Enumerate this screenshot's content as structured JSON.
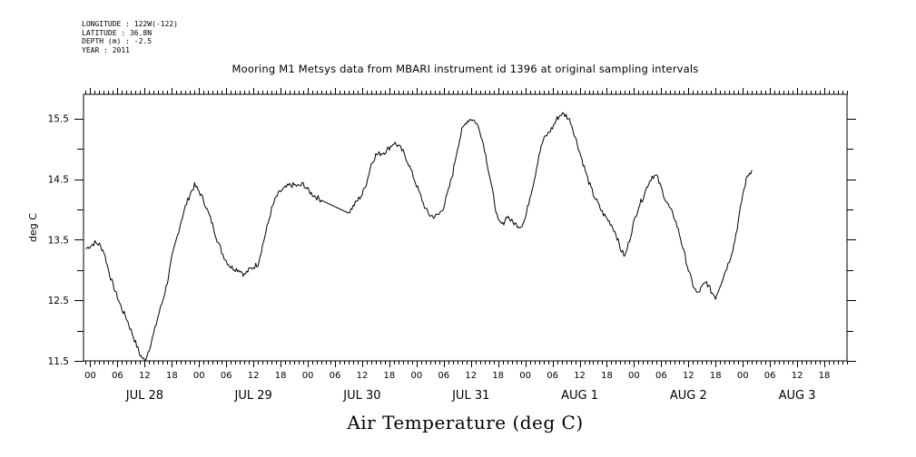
{
  "meta": {
    "longitude": "LONGITUDE : 122W(-122)",
    "latitude": "LATITUDE : 36.8N",
    "depth": "DEPTH (m) : -2.5",
    "year": "YEAR : 2011"
  },
  "chart_data": {
    "type": "line",
    "title": "Mooring M1 Metsys data from MBARI instrument id 1396 at original sampling intervals",
    "xlabel": "Air Temperature (deg C)",
    "ylabel": "deg C",
    "x_unit": "hours",
    "xlim": [
      -1.5,
      167
    ],
    "ylim": [
      11.5,
      15.9
    ],
    "yticks": [
      "11.5",
      "12.5",
      "13.5",
      "14.5",
      "15.5"
    ],
    "ytick_values": [
      11.5,
      12.5,
      13.5,
      14.5,
      15.5
    ],
    "hour_ticks": [
      "00",
      "06",
      "12",
      "18",
      "00",
      "06",
      "12",
      "18",
      "00",
      "06",
      "12",
      "18",
      "00",
      "06",
      "12",
      "18",
      "00",
      "06",
      "12",
      "18",
      "00",
      "06",
      "12",
      "18",
      "00",
      "06",
      "12",
      "18"
    ],
    "hour_tick_values": [
      0,
      6,
      12,
      18,
      24,
      30,
      36,
      42,
      48,
      54,
      60,
      66,
      72,
      78,
      84,
      90,
      96,
      102,
      108,
      114,
      120,
      126,
      132,
      138,
      144,
      150,
      156,
      162
    ],
    "day_labels": [
      "JUL 28",
      "JUL 29",
      "JUL 30",
      "JUL 31",
      "AUG  1",
      "AUG  2",
      "AUG  3"
    ],
    "day_label_values": [
      12,
      36,
      60,
      84,
      108,
      132,
      156
    ],
    "grid": false,
    "series": [
      {
        "points": [
          [
            -1,
            13.35
          ],
          [
            0,
            13.4
          ],
          [
            1,
            13.45
          ],
          [
            2,
            13.42
          ],
          [
            3,
            13.3
          ],
          [
            4,
            13.0
          ],
          [
            5,
            12.75
          ],
          [
            6,
            12.55
          ],
          [
            7,
            12.35
          ],
          [
            8,
            12.2
          ],
          [
            9,
            12.0
          ],
          [
            10,
            11.8
          ],
          [
            11,
            11.6
          ],
          [
            12,
            11.5
          ],
          [
            13,
            11.7
          ],
          [
            14,
            11.95
          ],
          [
            15,
            12.25
          ],
          [
            16,
            12.5
          ],
          [
            17,
            12.8
          ],
          [
            18,
            13.2
          ],
          [
            19,
            13.5
          ],
          [
            20,
            13.8
          ],
          [
            21,
            14.05
          ],
          [
            22,
            14.25
          ],
          [
            23,
            14.4
          ],
          [
            24,
            14.3
          ],
          [
            25,
            14.15
          ],
          [
            26,
            13.95
          ],
          [
            27,
            13.75
          ],
          [
            28,
            13.5
          ],
          [
            29,
            13.3
          ],
          [
            30,
            13.15
          ],
          [
            31,
            13.05
          ],
          [
            32,
            13.02
          ],
          [
            33,
            13.0
          ],
          [
            34,
            12.92
          ],
          [
            35,
            13.0
          ],
          [
            36,
            13.05
          ],
          [
            37,
            13.1
          ],
          [
            38,
            13.4
          ],
          [
            39,
            13.7
          ],
          [
            40,
            14.0
          ],
          [
            41,
            14.2
          ],
          [
            42,
            14.3
          ],
          [
            43,
            14.35
          ],
          [
            44,
            14.4
          ],
          [
            45,
            14.4
          ],
          [
            46,
            14.38
          ],
          [
            47,
            14.42
          ],
          [
            48,
            14.32
          ],
          [
            49,
            14.25
          ],
          [
            50,
            14.2
          ],
          [
            51,
            14.15
          ],
          [
            57,
            13.95
          ],
          [
            58,
            14.05
          ],
          [
            59,
            14.15
          ],
          [
            60,
            14.25
          ],
          [
            61,
            14.45
          ],
          [
            62,
            14.75
          ],
          [
            63,
            14.9
          ],
          [
            64,
            14.92
          ],
          [
            65,
            14.95
          ],
          [
            66,
            15.02
          ],
          [
            67,
            15.1
          ],
          [
            68,
            15.05
          ],
          [
            69,
            14.95
          ],
          [
            70,
            14.8
          ],
          [
            71,
            14.6
          ],
          [
            72,
            14.4
          ],
          [
            73,
            14.2
          ],
          [
            74,
            14.0
          ],
          [
            75,
            13.9
          ],
          [
            76,
            13.88
          ],
          [
            77,
            13.92
          ],
          [
            78,
            14.05
          ],
          [
            79,
            14.3
          ],
          [
            80,
            14.6
          ],
          [
            81,
            15.0
          ],
          [
            82,
            15.3
          ],
          [
            83,
            15.45
          ],
          [
            84,
            15.5
          ],
          [
            85,
            15.45
          ],
          [
            86,
            15.3
          ],
          [
            87,
            15.0
          ],
          [
            88,
            14.6
          ],
          [
            89,
            14.2
          ],
          [
            90,
            13.8
          ],
          [
            91,
            13.75
          ],
          [
            92,
            13.9
          ],
          [
            93,
            13.8
          ],
          [
            94,
            13.75
          ],
          [
            95,
            13.72
          ],
          [
            96,
            13.85
          ],
          [
            97,
            14.2
          ],
          [
            98,
            14.5
          ],
          [
            99,
            14.9
          ],
          [
            100,
            15.15
          ],
          [
            101,
            15.25
          ],
          [
            102,
            15.35
          ],
          [
            103,
            15.5
          ],
          [
            104,
            15.58
          ],
          [
            105,
            15.55
          ],
          [
            106,
            15.45
          ],
          [
            107,
            15.2
          ],
          [
            108,
            14.95
          ],
          [
            109,
            14.7
          ],
          [
            110,
            14.45
          ],
          [
            111,
            14.25
          ],
          [
            112,
            14.1
          ],
          [
            113,
            13.95
          ],
          [
            114,
            13.85
          ],
          [
            115,
            13.75
          ],
          [
            116,
            13.6
          ],
          [
            117,
            13.35
          ],
          [
            118,
            13.22
          ],
          [
            119,
            13.5
          ],
          [
            120,
            13.8
          ],
          [
            121,
            14.05
          ],
          [
            122,
            14.2
          ],
          [
            123,
            14.4
          ],
          [
            124,
            14.55
          ],
          [
            125,
            14.55
          ],
          [
            126,
            14.35
          ],
          [
            127,
            14.15
          ],
          [
            128,
            14.0
          ],
          [
            129,
            13.85
          ],
          [
            130,
            13.6
          ],
          [
            131,
            13.3
          ],
          [
            132,
            13.0
          ],
          [
            133,
            12.75
          ],
          [
            134,
            12.6
          ],
          [
            135,
            12.72
          ],
          [
            136,
            12.8
          ],
          [
            137,
            12.65
          ],
          [
            138,
            12.55
          ],
          [
            139,
            12.75
          ],
          [
            140,
            12.95
          ],
          [
            141,
            13.15
          ],
          [
            142,
            13.4
          ],
          [
            143,
            13.8
          ],
          [
            144,
            14.25
          ],
          [
            145,
            14.55
          ],
          [
            146,
            14.65
          ]
        ]
      }
    ]
  }
}
